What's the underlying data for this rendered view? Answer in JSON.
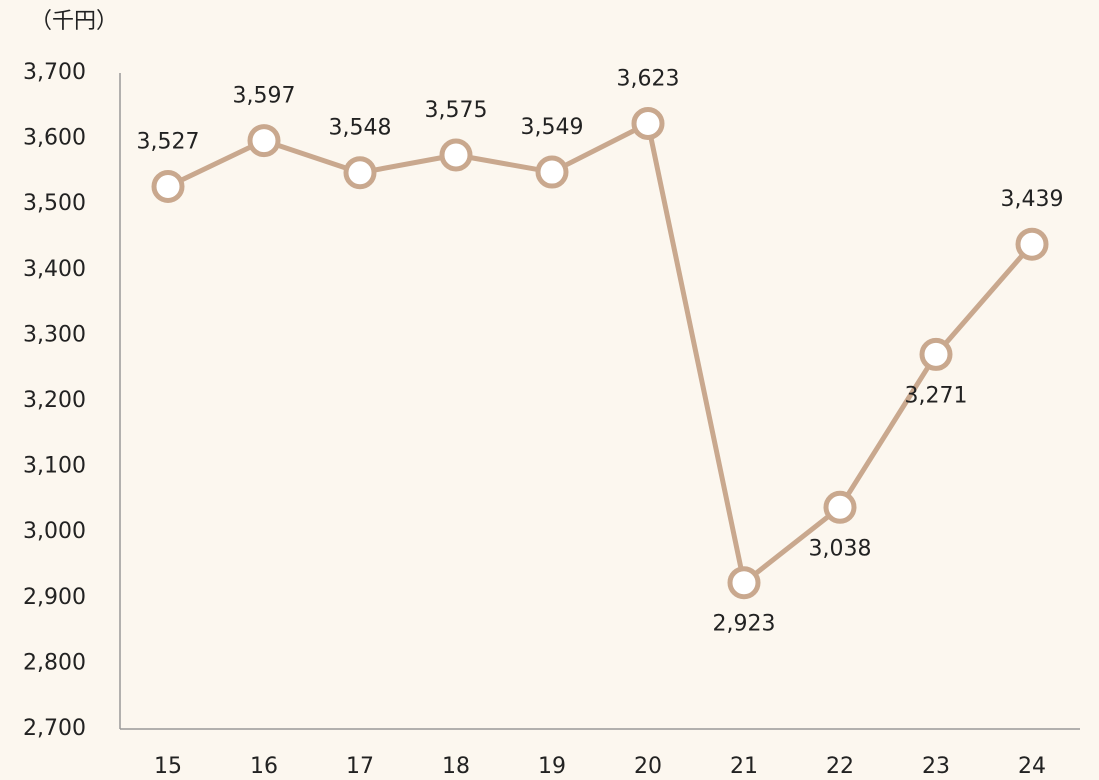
{
  "chart_data": {
    "type": "line",
    "y_label": "（千円）",
    "categories": [
      "15",
      "16",
      "17",
      "18",
      "19",
      "20",
      "21",
      "22",
      "23",
      "24"
    ],
    "series": [
      {
        "name": null,
        "color": "#c9a88e",
        "values": [
          3527,
          3597,
          3548,
          3575,
          3549,
          3623,
          2923,
          3038,
          3271,
          3439
        ],
        "value_labels": [
          "3,527",
          "3,597",
          "3,548",
          "3,575",
          "3,549",
          "3,623",
          "2,923",
          "3,038",
          "3,271",
          "3,439"
        ]
      }
    ],
    "ylim": [
      2700,
      3700
    ],
    "yticks": [
      {
        "value": 2700,
        "label": "2,700"
      },
      {
        "value": 2800,
        "label": "2,800"
      },
      {
        "value": 2900,
        "label": "2,900"
      },
      {
        "value": 3000,
        "label": "3,000"
      },
      {
        "value": 3100,
        "label": "3,100"
      },
      {
        "value": 3200,
        "label": "3,200"
      },
      {
        "value": 3300,
        "label": "3,300"
      },
      {
        "value": 3400,
        "label": "3,400"
      },
      {
        "value": 3500,
        "label": "3,500"
      },
      {
        "value": 3600,
        "label": "3,600"
      },
      {
        "value": 3700,
        "label": "3,700"
      }
    ],
    "grid": false
  }
}
